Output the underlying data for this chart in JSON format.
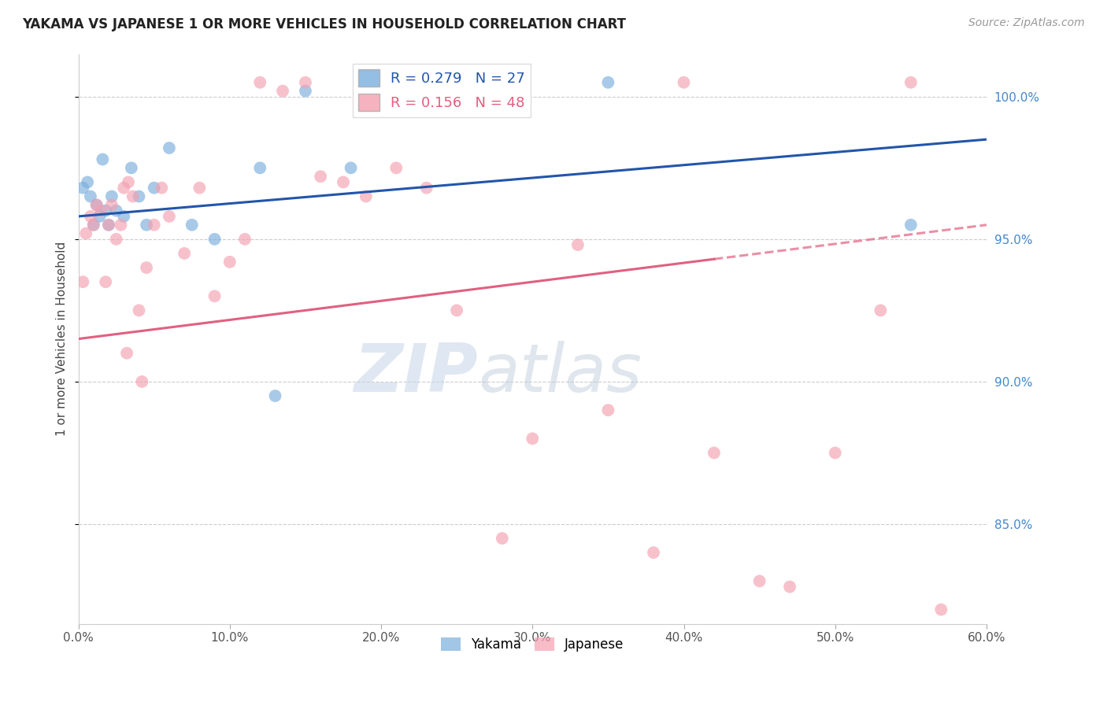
{
  "title": "YAKAMA VS JAPANESE 1 OR MORE VEHICLES IN HOUSEHOLD CORRELATION CHART",
  "source": "Source: ZipAtlas.com",
  "xlabel": "",
  "ylabel": "1 or more Vehicles in Household",
  "xlim": [
    0.0,
    60.0
  ],
  "ylim": [
    81.5,
    101.5
  ],
  "yticks": [
    85.0,
    90.0,
    95.0,
    100.0
  ],
  "xticks": [
    0.0,
    10.0,
    20.0,
    30.0,
    40.0,
    50.0,
    60.0
  ],
  "blue_R": 0.279,
  "blue_N": 27,
  "pink_R": 0.156,
  "pink_N": 48,
  "blue_color": "#7aaedc",
  "pink_color": "#f4a0b0",
  "blue_line_color": "#2255aa",
  "pink_line_color": "#e06080",
  "watermark_zip_color": "#c5d5e8",
  "watermark_atlas_color": "#b8c8d8",
  "legend_blue_label": "Yakama",
  "legend_pink_label": "Japanese",
  "blue_line_x0": 0.0,
  "blue_line_y0": 95.8,
  "blue_line_x1": 60.0,
  "blue_line_y1": 98.5,
  "pink_line_x0": 0.0,
  "pink_line_y0": 91.5,
  "pink_line_x1": 60.0,
  "pink_line_y1": 95.5,
  "pink_solid_end_x": 42.0,
  "blue_points_x": [
    0.3,
    0.6,
    0.8,
    1.0,
    1.2,
    1.4,
    1.6,
    1.8,
    2.0,
    2.2,
    2.5,
    3.0,
    3.5,
    4.0,
    4.5,
    5.0,
    6.0,
    7.5,
    9.0,
    12.0,
    15.0,
    18.0,
    22.0,
    35.0,
    55.0,
    13.0,
    20.0
  ],
  "blue_points_y": [
    96.8,
    97.0,
    96.5,
    95.5,
    96.2,
    95.8,
    97.8,
    96.0,
    95.5,
    96.5,
    96.0,
    95.8,
    97.5,
    96.5,
    95.5,
    96.8,
    98.2,
    95.5,
    95.0,
    97.5,
    100.2,
    97.5,
    100.5,
    100.5,
    95.5,
    89.5,
    100.0
  ],
  "pink_points_x": [
    0.3,
    0.5,
    0.8,
    1.0,
    1.2,
    1.5,
    1.8,
    2.0,
    2.2,
    2.5,
    2.8,
    3.0,
    3.3,
    3.6,
    4.0,
    4.5,
    5.0,
    5.5,
    6.0,
    7.0,
    8.0,
    9.0,
    10.0,
    11.0,
    12.0,
    13.5,
    15.0,
    16.0,
    17.5,
    19.0,
    21.0,
    23.0,
    25.0,
    28.0,
    30.0,
    33.0,
    35.0,
    38.0,
    40.0,
    42.0,
    45.0,
    47.0,
    50.0,
    53.0,
    55.0,
    57.0,
    3.2,
    4.2
  ],
  "pink_points_y": [
    93.5,
    95.2,
    95.8,
    95.5,
    96.2,
    96.0,
    93.5,
    95.5,
    96.2,
    95.0,
    95.5,
    96.8,
    97.0,
    96.5,
    92.5,
    94.0,
    95.5,
    96.8,
    95.8,
    94.5,
    96.8,
    93.0,
    94.2,
    95.0,
    100.5,
    100.2,
    100.5,
    97.2,
    97.0,
    96.5,
    97.5,
    96.8,
    92.5,
    84.5,
    88.0,
    94.8,
    89.0,
    84.0,
    100.5,
    87.5,
    83.0,
    82.8,
    87.5,
    92.5,
    100.5,
    82.0,
    91.0,
    90.0
  ]
}
